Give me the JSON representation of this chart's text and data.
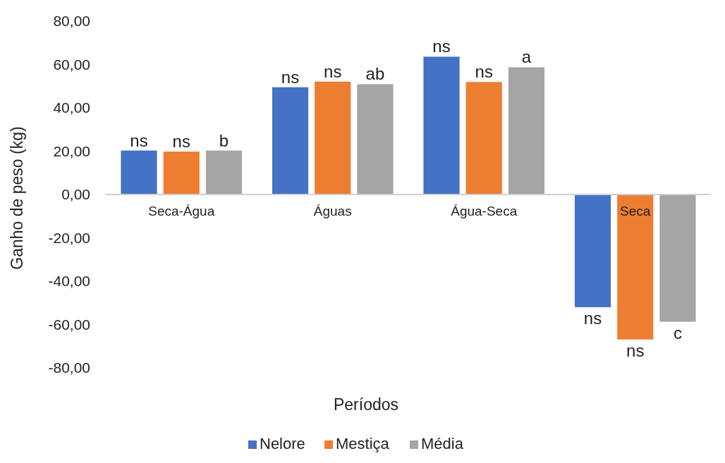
{
  "chart_data": {
    "type": "bar",
    "xlabel": "Períodos",
    "ylabel": "Ganho de peso (kg)",
    "categories": [
      "Seca-Água",
      "Águas",
      "Água-Seca",
      "Seca"
    ],
    "series": [
      {
        "name": "Nelore",
        "color": "#4472c4",
        "values": [
          20.3,
          49.5,
          63.6,
          -52
        ],
        "value_labels": [
          "ns",
          "ns",
          "ns",
          "ns"
        ]
      },
      {
        "name": "Mestiça",
        "color": "#ed7d31",
        "values": [
          19.8,
          52.1,
          51.9,
          -66.9
        ],
        "value_labels": [
          "ns",
          "ns",
          "ns",
          "ns"
        ]
      },
      {
        "name": "Média",
        "color": "#a5a5a5",
        "values": [
          20.3,
          50.9,
          58.7,
          -58.7
        ],
        "value_labels": [
          "b",
          "ab",
          "a",
          "c"
        ]
      }
    ],
    "ylim": [
      -80,
      80
    ],
    "yticks": [
      {
        "value": -80,
        "label": "-80,00"
      },
      {
        "value": -60,
        "label": "-60,00"
      },
      {
        "value": -40,
        "label": "-40,00"
      },
      {
        "value": -20,
        "label": "-20,00"
      },
      {
        "value": 0,
        "label": "0,00"
      },
      {
        "value": 20,
        "label": "20,00"
      },
      {
        "value": 40,
        "label": "40,00"
      },
      {
        "value": 60,
        "label": "60,00"
      },
      {
        "value": 80,
        "label": "80,00"
      }
    ],
    "grid": false,
    "legend": "bottom"
  }
}
